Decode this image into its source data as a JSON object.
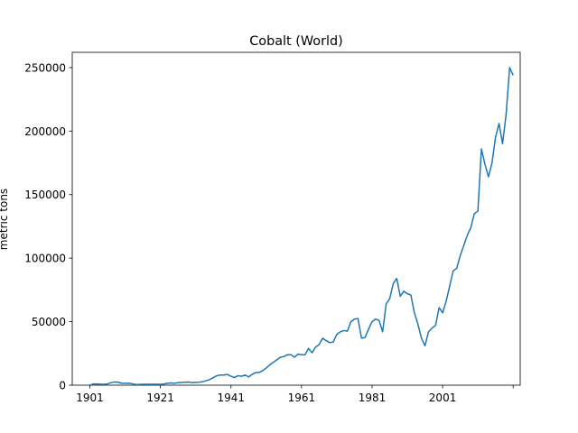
{
  "chart_data": {
    "type": "line",
    "title": "Cobalt (World)",
    "xlabel": "",
    "ylabel": "metric tons",
    "xlim": [
      1896,
      2023
    ],
    "ylim": [
      0,
      262000
    ],
    "x_ticks": [
      1901,
      1921,
      1941,
      1961,
      1981,
      2001,
      2021
    ],
    "x_tick_labels": [
      "1901",
      "1921",
      "1941",
      "1961",
      "1981",
      "2001",
      ""
    ],
    "y_ticks": [
      0,
      50000,
      100000,
      150000,
      200000,
      250000
    ],
    "y_tick_labels": [
      "0",
      "50000",
      "100000",
      "150000",
      "200000",
      "250000"
    ],
    "grid": false,
    "series": [
      {
        "color": "#1f77b4",
        "points": [
          [
            1901,
            0
          ],
          [
            1902,
            1000
          ],
          [
            1903,
            1000
          ],
          [
            1904,
            800
          ],
          [
            1905,
            700
          ],
          [
            1906,
            1000
          ],
          [
            1907,
            2000
          ],
          [
            1908,
            2500
          ],
          [
            1909,
            2400
          ],
          [
            1910,
            1500
          ],
          [
            1911,
            1500
          ],
          [
            1912,
            1600
          ],
          [
            1913,
            1200
          ],
          [
            1914,
            500
          ],
          [
            1915,
            600
          ],
          [
            1916,
            700
          ],
          [
            1917,
            700
          ],
          [
            1918,
            700
          ],
          [
            1919,
            700
          ],
          [
            1920,
            800
          ],
          [
            1921,
            600
          ],
          [
            1922,
            1000
          ],
          [
            1923,
            1500
          ],
          [
            1924,
            1800
          ],
          [
            1925,
            1500
          ],
          [
            1926,
            2000
          ],
          [
            1927,
            2200
          ],
          [
            1928,
            2400
          ],
          [
            1929,
            2500
          ],
          [
            1930,
            2000
          ],
          [
            1931,
            2200
          ],
          [
            1932,
            2300
          ],
          [
            1933,
            2800
          ],
          [
            1934,
            3500
          ],
          [
            1935,
            4500
          ],
          [
            1936,
            6000
          ],
          [
            1937,
            7500
          ],
          [
            1938,
            8000
          ],
          [
            1939,
            8000
          ],
          [
            1940,
            8500
          ],
          [
            1941,
            7000
          ],
          [
            1942,
            6000
          ],
          [
            1943,
            7500
          ],
          [
            1944,
            7000
          ],
          [
            1945,
            8000
          ],
          [
            1946,
            6500
          ],
          [
            1947,
            8500
          ],
          [
            1948,
            10000
          ],
          [
            1949,
            10000
          ],
          [
            1950,
            11500
          ],
          [
            1951,
            13500
          ],
          [
            1952,
            16000
          ],
          [
            1953,
            18000
          ],
          [
            1954,
            20000
          ],
          [
            1955,
            22000
          ],
          [
            1956,
            22500
          ],
          [
            1957,
            24000
          ],
          [
            1958,
            24000
          ],
          [
            1959,
            22000
          ],
          [
            1960,
            24500
          ],
          [
            1961,
            24000
          ],
          [
            1962,
            24000
          ],
          [
            1963,
            29000
          ],
          [
            1964,
            25500
          ],
          [
            1965,
            30000
          ],
          [
            1966,
            32000
          ],
          [
            1967,
            37000
          ],
          [
            1968,
            35000
          ],
          [
            1969,
            33500
          ],
          [
            1970,
            34000
          ],
          [
            1971,
            40000
          ],
          [
            1972,
            42000
          ],
          [
            1973,
            43000
          ],
          [
            1974,
            42500
          ],
          [
            1975,
            50000
          ],
          [
            1976,
            52000
          ],
          [
            1977,
            52500
          ],
          [
            1978,
            37000
          ],
          [
            1979,
            37500
          ],
          [
            1980,
            44000
          ],
          [
            1981,
            50000
          ],
          [
            1982,
            52000
          ],
          [
            1983,
            51000
          ],
          [
            1984,
            42000
          ],
          [
            1985,
            64000
          ],
          [
            1986,
            68000
          ],
          [
            1987,
            80000
          ],
          [
            1988,
            84000
          ],
          [
            1989,
            70000
          ],
          [
            1990,
            74000
          ],
          [
            1991,
            72000
          ],
          [
            1992,
            71000
          ],
          [
            1993,
            57000
          ],
          [
            1994,
            48000
          ],
          [
            1995,
            37000
          ],
          [
            1996,
            31000
          ],
          [
            1997,
            42000
          ],
          [
            1998,
            45000
          ],
          [
            1999,
            47000
          ],
          [
            2000,
            61000
          ],
          [
            2001,
            57000
          ],
          [
            2002,
            66000
          ],
          [
            2003,
            78000
          ],
          [
            2004,
            90000
          ],
          [
            2005,
            92000
          ],
          [
            2006,
            102000
          ],
          [
            2007,
            110000
          ],
          [
            2008,
            118000
          ],
          [
            2009,
            124000
          ],
          [
            2010,
            135000
          ],
          [
            2011,
            137000
          ],
          [
            2012,
            186000
          ],
          [
            2013,
            174000
          ],
          [
            2014,
            164000
          ],
          [
            2015,
            175000
          ],
          [
            2016,
            195000
          ],
          [
            2017,
            206000
          ],
          [
            2018,
            190000
          ],
          [
            2019,
            213000
          ],
          [
            2020,
            250000
          ],
          [
            2021,
            244000
          ]
        ]
      }
    ]
  }
}
